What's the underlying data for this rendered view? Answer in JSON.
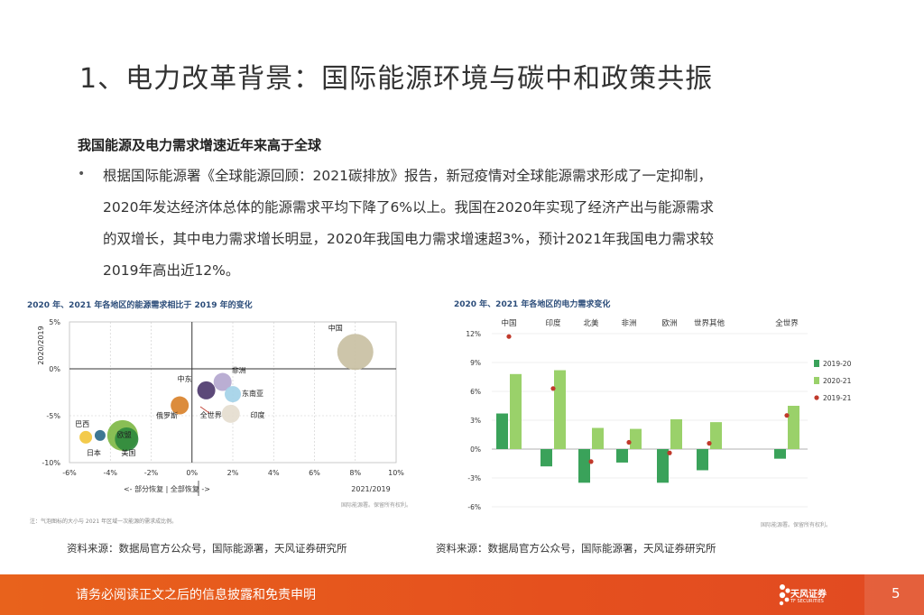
{
  "slide": {
    "title": "1、电力改革背景：国际能源环境与碳中和政策共振",
    "subtitle": "我国能源及电力需求增速近年来高于全球",
    "bullet": "•",
    "paragraph": [
      "根据国际能源署《全球能源回顾：2021碳排放》报告，新冠疫情对全球能源需求形成了一定抑制，",
      "2020年发达经济体总体的能源需求平均下降了6%以上。我国在2020年实现了经济产出与能源需求",
      "的双增长，其中电力需求增长明显，2020年我国电力需求增速超3%，预计2021年我国电力需求较",
      "2019年高出近12%。"
    ],
    "source_left": "资料来源：数据局官方公众号，国际能源署，天风证券研究所",
    "source_right": "资料来源：数据局官方公众号，国际能源署，天风证券研究所",
    "footer_text": "请务必阅读正文之后的信息披露和免责申明",
    "logo_name": "天风证券",
    "logo_sub": "TF SECURITIES",
    "page_number": "5"
  },
  "chart_data": [
    {
      "type": "scatter",
      "title": "2020 年、2021 年各地区的能源需求相比于 2019 年的变化",
      "xlabel": "2021/2019",
      "ylabel": "2020/2019",
      "xlim": [
        -6,
        10
      ],
      "ylim": [
        -10,
        5
      ],
      "x_ticks": [
        "-6%",
        "-4%",
        "-2%",
        "0%",
        "2%",
        "4%",
        "6%",
        "8%",
        "10%"
      ],
      "y_ticks": [
        "5%",
        "0%",
        "-5%",
        "-10%"
      ],
      "x_annotation": "<- 部分恢复 | 全部恢复 ->",
      "note": "注：气泡图标的大小与 2021 年区域一次能源的需求成比例。",
      "watermark": "国际能源署。保留所有权利。",
      "points": [
        {
          "name": "中国",
          "x": 8,
          "y": 1.8,
          "size": 20,
          "color": "#c9c0a3"
        },
        {
          "name": "非洲",
          "x": 1.5,
          "y": -1.4,
          "size": 10,
          "color": "#b4a7cf"
        },
        {
          "name": "中东",
          "x": 0.7,
          "y": -2.3,
          "size": 10,
          "color": "#4e3a6e"
        },
        {
          "name": "东南亚",
          "x": 2.0,
          "y": -2.7,
          "size": 9,
          "color": "#a4d3e8"
        },
        {
          "name": "俄罗斯",
          "x": -0.6,
          "y": -3.9,
          "size": 10,
          "color": "#d9822b"
        },
        {
          "name": "全世界",
          "x": 1.9,
          "y": -4.8,
          "size": 10,
          "color": "#e5ddcf"
        },
        {
          "name": "印度",
          "x": 2.6,
          "y": -4.8,
          "size": 0,
          "color": "#000000"
        },
        {
          "name": "巴西",
          "x": -5.2,
          "y": -7.3,
          "size": 7,
          "color": "#f2c53d"
        },
        {
          "name": "日本",
          "x": -4.5,
          "y": -7.1,
          "size": 6,
          "color": "#2e6b8a"
        },
        {
          "name": "欧盟",
          "x": -3.4,
          "y": -7.1,
          "size": 17,
          "color": "#7fb847"
        },
        {
          "name": "美国",
          "x": -3.2,
          "y": -7.5,
          "size": 13,
          "color": "#2f8a3e"
        }
      ]
    },
    {
      "type": "bar",
      "title": "2020 年、2021 年各地区的电力需求变化",
      "categories": [
        "中国",
        "印度",
        "北美",
        "非洲",
        "欧洲",
        "世界其他",
        "全世界"
      ],
      "ylim": [
        -6,
        12
      ],
      "y_ticks": [
        "12%",
        "9%",
        "6%",
        "3%",
        "0%",
        "-3%",
        "-6%"
      ],
      "watermark": "国际能源署。保留所有权利。",
      "legend_position": "right",
      "series": [
        {
          "name": "2019-20",
          "type": "bar",
          "color": "#3aa25a",
          "values": [
            3.7,
            -1.8,
            -3.5,
            -1.4,
            -3.5,
            -2.2,
            -1.0
          ]
        },
        {
          "name": "2020-21",
          "type": "bar",
          "color": "#9ad16a",
          "values": [
            7.8,
            8.2,
            2.2,
            2.1,
            3.1,
            2.8,
            4.5
          ]
        },
        {
          "name": "2019-21",
          "type": "dot",
          "color": "#c0392b",
          "values": [
            11.7,
            6.3,
            -1.3,
            0.7,
            -0.4,
            0.6,
            3.5
          ]
        }
      ]
    }
  ]
}
